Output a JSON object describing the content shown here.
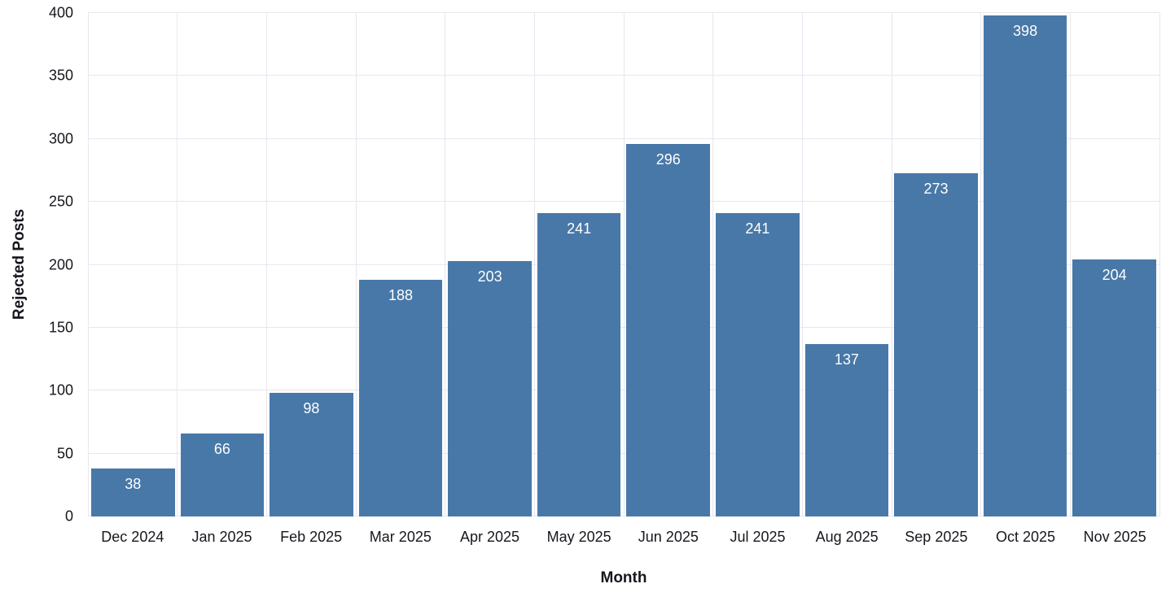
{
  "chart_data": {
    "type": "bar",
    "title": "",
    "xlabel": "Month",
    "ylabel": "Rejected Posts",
    "categories": [
      "Dec 2024",
      "Jan 2025",
      "Feb 2025",
      "Mar 2025",
      "Apr 2025",
      "May 2025",
      "Jun 2025",
      "Jul 2025",
      "Aug 2025",
      "Sep 2025",
      "Oct 2025",
      "Nov 2025"
    ],
    "values": [
      38,
      66,
      98,
      188,
      203,
      241,
      296,
      241,
      137,
      273,
      398,
      204
    ],
    "ylim": [
      0,
      400
    ],
    "yticks": [
      0,
      50,
      100,
      150,
      200,
      250,
      300,
      350,
      400
    ],
    "grid": true,
    "legend": "none",
    "bar_color": "#4878a8",
    "bar_label_color": "#ffffff",
    "grid_color": "#e7e7f0",
    "background_color": "#ffffff",
    "text_color": "#16161d"
  }
}
